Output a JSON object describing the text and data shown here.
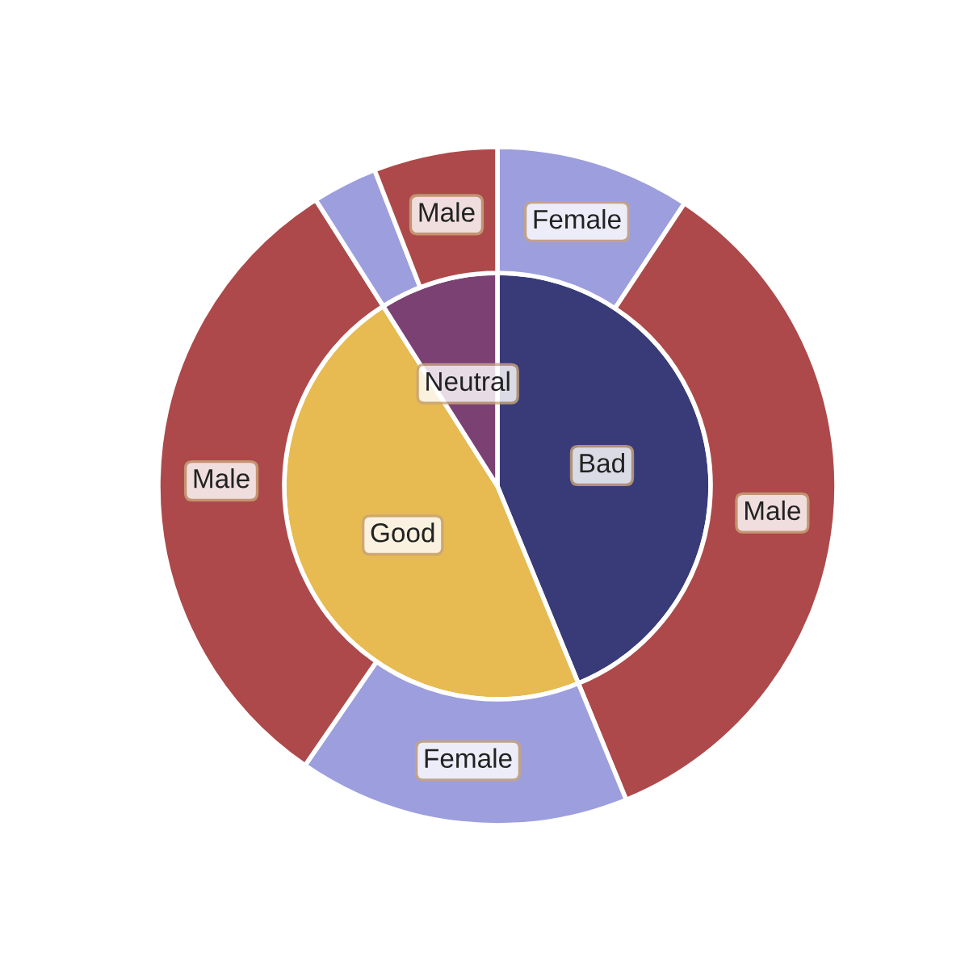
{
  "chart_data": {
    "type": "pie",
    "series": [
      {
        "values": [
          43.8,
          47.2,
          9.0
        ],
        "colors": [
          "#393b79",
          "#e7ba52",
          "#7b4173"
        ],
        "value_labels": [
          "Bad",
          "Good",
          "Neutral"
        ]
      },
      {
        "type": "donut",
        "values": [
          9.3,
          34.5,
          15.8,
          31.4,
          3.1,
          5.9
        ],
        "colors": [
          "#9c9ede",
          "#ad494a",
          "#9c9ede",
          "#ad494a",
          "#9c9ede",
          "#ad494a"
        ],
        "value_labels": [
          "Female",
          "Male",
          "Female",
          "Male",
          null,
          "Male"
        ]
      }
    ]
  }
}
